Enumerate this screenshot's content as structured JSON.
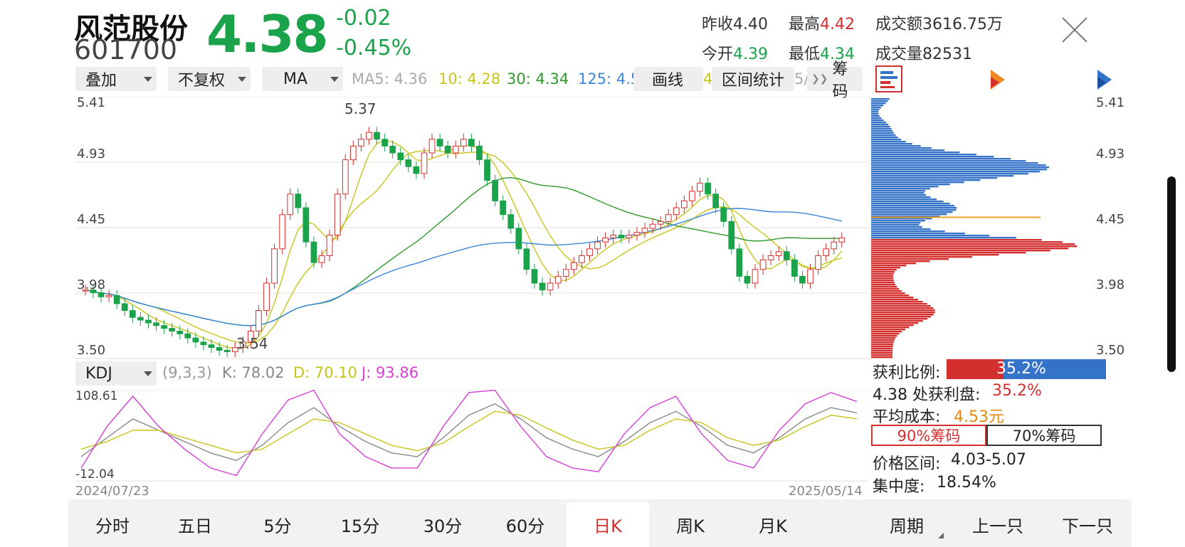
{
  "header": {
    "name": "风范股份",
    "code": "601700",
    "price": "4.38",
    "change": "-0.02",
    "change_pct": "-0.45%",
    "prev_close_label": "昨收",
    "prev_close": "4.40",
    "high_label": "最高",
    "high": "4.42",
    "amount_label": "成交额",
    "amount": "3616.75万",
    "open_label": "今开",
    "open": "4.39",
    "low_label": "最低",
    "low": "4.34",
    "volume_label": "成交量",
    "volume": "82531"
  },
  "toolbar": {
    "overlay": "叠加",
    "adjust": "不复权",
    "indicator": "MA",
    "ma5": "MA5: 4.36",
    "ma10": "10: 4.28",
    "ma30": "30: 4.34",
    "ma125": "125: 4.5",
    "draw_line": "画线",
    "range_stats": "区间统计",
    "chips": "筹码",
    "ma_extra": "4.",
    "ma_extra2": "5/"
  },
  "colors": {
    "up": "#d32f2f",
    "down": "#1aa34a",
    "ma5": "#c9c41a",
    "ma10": "#c9c41a",
    "ma30": "#2e9a2e",
    "ma125": "#3a86d8",
    "kdj_k": "#888888",
    "kdj_d": "#c9c41a",
    "kdj_j": "#d63fd6",
    "chip_profit": "#d32f2f",
    "chip_loss": "#3573c8"
  },
  "price_axis": {
    "labels": [
      "5.41",
      "4.93",
      "4.45",
      "3.98",
      "3.50"
    ]
  },
  "chart_annotations": {
    "high_label": "5.37",
    "low_label": "3.54"
  },
  "kdj": {
    "name": "KDJ",
    "params": "(9,3,3)",
    "k": "K: 78.02",
    "d": "D: 70.10",
    "j": "J: 93.86",
    "ymax": "108.61",
    "ymin": "-12.04"
  },
  "dates": {
    "start": "2024/07/23",
    "end": "2025/05/14"
  },
  "chip_panel": {
    "profit_ratio_label": "获利比例:",
    "profit_ratio": "35.2%",
    "profit_ratio_value": 0.352,
    "profit_at_label": "4.38 处获利盘:",
    "profit_at": "35.2%",
    "avg_cost_label": "平均成本:",
    "avg_cost": "4.53元",
    "btn_90": "90%筹码",
    "btn_70": "70%筹码",
    "range_label": "价格区间:",
    "range": "4.03-5.07",
    "concentration_label": "集中度:",
    "concentration": "18.54%"
  },
  "tabs": [
    "分时",
    "五日",
    "5分",
    "15分",
    "30分",
    "60分",
    "日K",
    "周K",
    "月K"
  ],
  "active_tab": "日K",
  "period": "周期",
  "prev_stock": "上一只",
  "next_stock": "下一只",
  "chart_data": [
    {
      "type": "candlestick",
      "ylim": [
        3.5,
        5.41
      ],
      "x_range": [
        "2024/07/23",
        "2025/05/14"
      ],
      "close_approx": [
        4.0,
        3.98,
        3.95,
        3.96,
        3.9,
        3.85,
        3.8,
        3.78,
        3.76,
        3.74,
        3.72,
        3.7,
        3.68,
        3.65,
        3.62,
        3.6,
        3.58,
        3.56,
        3.55,
        3.58,
        3.62,
        3.7,
        3.85,
        4.05,
        4.3,
        4.55,
        4.7,
        4.6,
        4.35,
        4.2,
        4.25,
        4.4,
        4.7,
        4.95,
        5.05,
        5.1,
        5.15,
        5.1,
        5.05,
        5.0,
        4.95,
        4.9,
        4.85,
        5.0,
        5.1,
        5.05,
        5.0,
        5.05,
        5.1,
        5.05,
        4.95,
        4.8,
        4.65,
        4.55,
        4.45,
        4.3,
        4.15,
        4.05,
        4.0,
        4.05,
        4.1,
        4.15,
        4.2,
        4.25,
        4.3,
        4.35,
        4.38,
        4.4,
        4.38,
        4.4,
        4.42,
        4.45,
        4.48,
        4.5,
        4.55,
        4.6,
        4.65,
        4.72,
        4.78,
        4.7,
        4.6,
        4.5,
        4.3,
        4.1,
        4.05,
        4.15,
        4.22,
        4.25,
        4.28,
        4.22,
        4.1,
        4.05,
        4.15,
        4.25,
        4.3,
        4.35,
        4.38
      ]
    },
    {
      "type": "line",
      "title": "KDJ",
      "series": [
        {
          "name": "K",
          "values": [
            20,
            45,
            70,
            55,
            40,
            25,
            15,
            35,
            65,
            85,
            60,
            40,
            25,
            20,
            45,
            75,
            90,
            70,
            45,
            30,
            20,
            40,
            65,
            80,
            60,
            35,
            25,
            45,
            70,
            85,
            78
          ]
        },
        {
          "name": "D",
          "values": [
            30,
            40,
            55,
            55,
            45,
            35,
            25,
            30,
            50,
            70,
            65,
            50,
            35,
            28,
            38,
            60,
            80,
            75,
            58,
            42,
            30,
            35,
            55,
            70,
            65,
            45,
            35,
            42,
            60,
            75,
            70
          ]
        },
        {
          "name": "J",
          "values": [
            5,
            60,
            100,
            60,
            30,
            5,
            -5,
            50,
            95,
            108,
            50,
            20,
            5,
            5,
            60,
            105,
            108,
            60,
            20,
            5,
            0,
            50,
            85,
            100,
            50,
            15,
            5,
            55,
            90,
            105,
            93
          ]
        }
      ],
      "ylim": [
        -12.04,
        108.61
      ]
    },
    {
      "type": "bar",
      "title": "chip distribution",
      "categories_price": [
        5.41,
        3.5
      ],
      "profit_ratio": 0.352
    }
  ]
}
